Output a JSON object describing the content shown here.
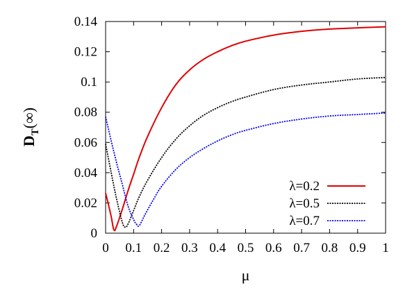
{
  "chart_data": {
    "type": "line",
    "title": "",
    "xlabel": "μ",
    "ylabel": {
      "main": "D",
      "sub": "T",
      "suffix": "(∞)"
    },
    "xlim": [
      0,
      1
    ],
    "ylim": [
      0,
      0.14
    ],
    "xticks": [
      "0",
      "0.1",
      "0.2",
      "0.3",
      "0.4",
      "0.5",
      "0.6",
      "0.7",
      "0.8",
      "0.9",
      "1"
    ],
    "yticks": [
      "0",
      "0.02",
      "0.04",
      "0.06",
      "0.08",
      "0.1",
      "0.12",
      "0.14"
    ],
    "grid": false,
    "legend_position": "bottom-right",
    "series": [
      {
        "name": "λ=0.2",
        "color": "#e00000",
        "dash": "solid",
        "x": [
          0.0,
          0.01,
          0.02,
          0.03,
          0.04,
          0.06,
          0.08,
          0.1,
          0.12,
          0.15,
          0.2,
          0.25,
          0.3,
          0.35,
          0.4,
          0.45,
          0.5,
          0.6,
          0.7,
          0.8,
          0.9,
          1.0
        ],
        "y": [
          0.0265,
          0.019,
          0.011,
          0.002,
          0.005,
          0.016,
          0.028,
          0.039,
          0.05,
          0.064,
          0.083,
          0.098,
          0.108,
          0.115,
          0.12,
          0.124,
          0.127,
          0.131,
          0.1335,
          0.135,
          0.1358,
          0.1365
        ]
      },
      {
        "name": "λ=0.5",
        "color": "#000000",
        "dash": "dotted",
        "x": [
          0.0,
          0.02,
          0.04,
          0.06,
          0.07,
          0.08,
          0.1,
          0.12,
          0.15,
          0.2,
          0.25,
          0.3,
          0.35,
          0.4,
          0.45,
          0.5,
          0.6,
          0.7,
          0.8,
          0.9,
          1.0
        ],
        "y": [
          0.059,
          0.04,
          0.022,
          0.007,
          0.004,
          0.006,
          0.015,
          0.024,
          0.035,
          0.05,
          0.062,
          0.071,
          0.078,
          0.083,
          0.087,
          0.09,
          0.095,
          0.098,
          0.1,
          0.102,
          0.103
        ]
      },
      {
        "name": "λ=0.7",
        "color": "#0000ee",
        "dash": "dotted",
        "x": [
          0.0,
          0.02,
          0.04,
          0.06,
          0.08,
          0.1,
          0.11,
          0.12,
          0.14,
          0.17,
          0.2,
          0.25,
          0.3,
          0.35,
          0.4,
          0.45,
          0.5,
          0.6,
          0.7,
          0.8,
          0.9,
          1.0
        ],
        "y": [
          0.077,
          0.061,
          0.046,
          0.032,
          0.018,
          0.009,
          0.006,
          0.005,
          0.012,
          0.022,
          0.031,
          0.042,
          0.05,
          0.056,
          0.061,
          0.065,
          0.068,
          0.0725,
          0.0755,
          0.0775,
          0.0785,
          0.0795
        ]
      }
    ]
  }
}
